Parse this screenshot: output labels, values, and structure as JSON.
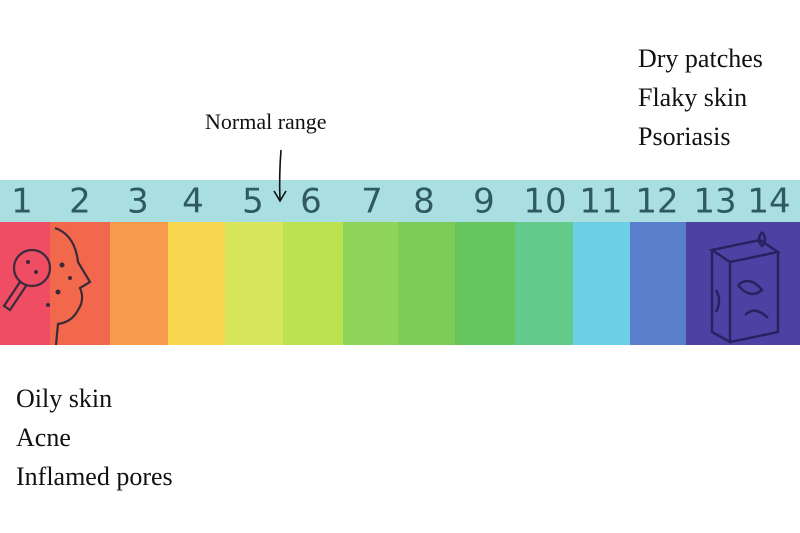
{
  "scale": {
    "labels": [
      1,
      2,
      3,
      4,
      5,
      6,
      7,
      8,
      9,
      10,
      11,
      12,
      13,
      14
    ],
    "colors": [
      "#ee4d63",
      "#f2684c",
      "#f59b4b",
      "#f8d64d",
      "#d7e65b",
      "#bce24f",
      "#8fd45a",
      "#7ccc57",
      "#65c55f",
      "#62ca8a",
      "#6ccfe6",
      "#5a80cb",
      "#4d42a3",
      "#4d42a3"
    ]
  },
  "marker": {
    "label": "Normal range"
  },
  "acidic": {
    "lines": [
      "Oily skin",
      "Acne",
      "Inflamed pores"
    ]
  },
  "alkaline": {
    "lines": [
      "Dry patches",
      "Flaky skin",
      "Psoriasis"
    ]
  }
}
